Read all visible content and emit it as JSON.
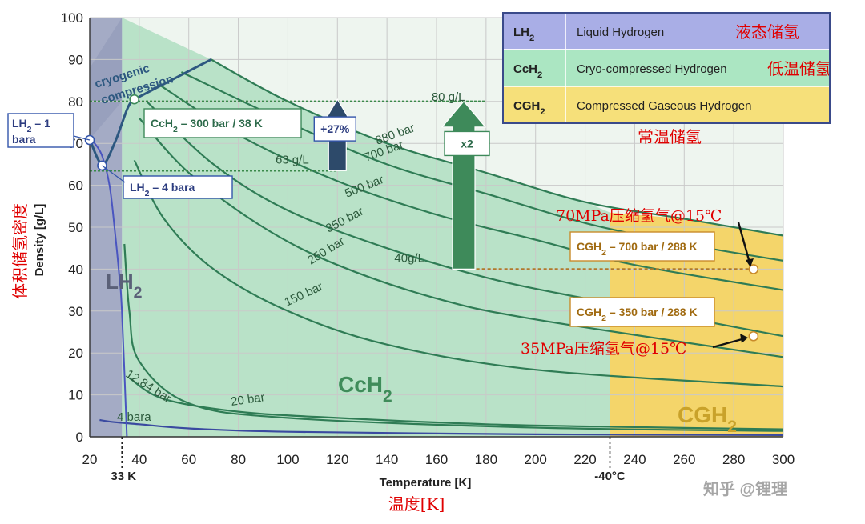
{
  "chart_data": {
    "type": "line",
    "xlabel": "Temperature [K]",
    "ylabel": "Density [g/L]",
    "xlim": [
      20,
      300
    ],
    "ylim": [
      0,
      100
    ],
    "x_ticks": [
      20,
      40,
      60,
      80,
      100,
      120,
      140,
      160,
      180,
      200,
      220,
      240,
      260,
      280,
      300
    ],
    "y_ticks": [
      0,
      10,
      20,
      30,
      40,
      50,
      60,
      70,
      80,
      90,
      100
    ],
    "regions": [
      {
        "label": "LH₂",
        "x_range": [
          20,
          33
        ],
        "color": "#8f96b8"
      },
      {
        "label": "CcH₂",
        "x_range": [
          33,
          230
        ],
        "color": "#b9e2c8"
      },
      {
        "label": "CGH₂",
        "x_range": [
          230,
          300
        ],
        "color": "#f4d56a"
      }
    ],
    "region_labels": [
      "LH₂",
      "CcH₂",
      "CGH₂"
    ],
    "series": [
      {
        "name": "880 bar",
        "x": [
          69,
          100,
          140,
          180,
          220,
          260,
          300
        ],
        "y": [
          90,
          80,
          70,
          63,
          56,
          52,
          48
        ]
      },
      {
        "name": "700 bar",
        "x": [
          57,
          100,
          140,
          180,
          220,
          260,
          300
        ],
        "y": [
          87,
          75,
          65,
          58,
          51,
          46,
          42
        ]
      },
      {
        "name": "500 bar",
        "x": [
          48,
          80,
          120,
          160,
          200,
          240,
          300
        ],
        "y": [
          84,
          72,
          61,
          53,
          47,
          41,
          35
        ]
      },
      {
        "name": "350 bar",
        "x": [
          43,
          70,
          100,
          140,
          180,
          220,
          300
        ],
        "y": [
          80,
          65,
          54,
          45,
          38,
          33,
          24
        ]
      },
      {
        "name": "250 bar",
        "x": [
          40,
          60,
          90,
          120,
          160,
          200,
          300
        ],
        "y": [
          76,
          63,
          50,
          41,
          33,
          28,
          19
        ]
      },
      {
        "name": "150 bar",
        "x": [
          38,
          50,
          70,
          100,
          140,
          200,
          300
        ],
        "y": [
          66,
          52,
          40,
          30,
          22,
          16,
          12
        ]
      },
      {
        "name": "20 bar",
        "x": [
          36,
          50,
          80,
          120,
          180,
          240,
          300
        ],
        "y": [
          14,
          9,
          6,
          4.5,
          3,
          2.3,
          1.8
        ]
      },
      {
        "name": "12.84 bar",
        "x": [
          34,
          36,
          40,
          60,
          100,
          200,
          300
        ],
        "y": [
          46,
          30,
          18,
          8,
          4.5,
          2.2,
          1.4
        ]
      },
      {
        "name": "4 bara",
        "x": [
          24,
          30,
          40,
          60,
          100,
          200,
          300
        ],
        "y": [
          4,
          3.5,
          3,
          2,
          1.2,
          0.6,
          0.4
        ]
      }
    ],
    "saturation_curve": {
      "x": [
        20,
        22,
        25,
        28,
        30,
        32,
        33,
        35
      ],
      "y": [
        71,
        70,
        67,
        60,
        50,
        38,
        30,
        0
      ]
    },
    "cryo_compression_path": {
      "x": [
        20,
        25,
        30,
        35,
        37,
        38
      ],
      "y": [
        71,
        65,
        70,
        78,
        80,
        80
      ]
    },
    "reference_lines": [
      {
        "label": "80 g/L",
        "y": 80,
        "x_range": [
          20,
          180
        ]
      },
      {
        "label": "63 g/L",
        "y": 63.5,
        "x_range": [
          20,
          120
        ]
      },
      {
        "label": "40g/L",
        "y": 40,
        "x_range": [
          167,
          288
        ]
      }
    ],
    "points": [
      {
        "label": "LH₂ – 1 bara",
        "x": 20,
        "y": 70.8
      },
      {
        "label": "LH₂ – 4 bara",
        "x": 25,
        "y": 64.7
      },
      {
        "label": "CcH₂ – 300 bar / 38 K",
        "x": 38,
        "y": 80.5
      },
      {
        "label": "CGH₂ – 700 bar / 288 K",
        "x": 288,
        "y": 40
      },
      {
        "label": "CGH₂ – 350 bar / 288 K",
        "x": 288,
        "y": 24
      }
    ],
    "arrows": [
      {
        "label": "+27%",
        "x": 120,
        "y_from": 63.5,
        "y_to": 80.5
      },
      {
        "label": "x2",
        "x": 171,
        "y_from": 40,
        "y_to": 80
      }
    ],
    "x_markers": [
      "33 K",
      "-40°C"
    ],
    "annotations": [
      "cryogenic compression"
    ],
    "legend": [
      {
        "abbr": "LH₂",
        "text": "Liquid Hydrogen",
        "cn": "液态储氢",
        "color": "#a9aee6"
      },
      {
        "abbr": "CcH₂",
        "text": "Cryo-compressed Hydrogen",
        "cn": "低温储氢",
        "color": "#abe6c2"
      },
      {
        "abbr": "CGH₂",
        "text": "Compressed Gaseous Hydrogen",
        "cn": "常温储氢",
        "color": "#f6e07a"
      }
    ],
    "cn_labels": {
      "ylabel": "体积储氢密度",
      "xlabel": "温度[K]",
      "p700": "70MPa压缩氢气@15℃",
      "p350": "35MPa压缩氢气@15℃"
    },
    "watermark": "知乎 @锂理"
  }
}
